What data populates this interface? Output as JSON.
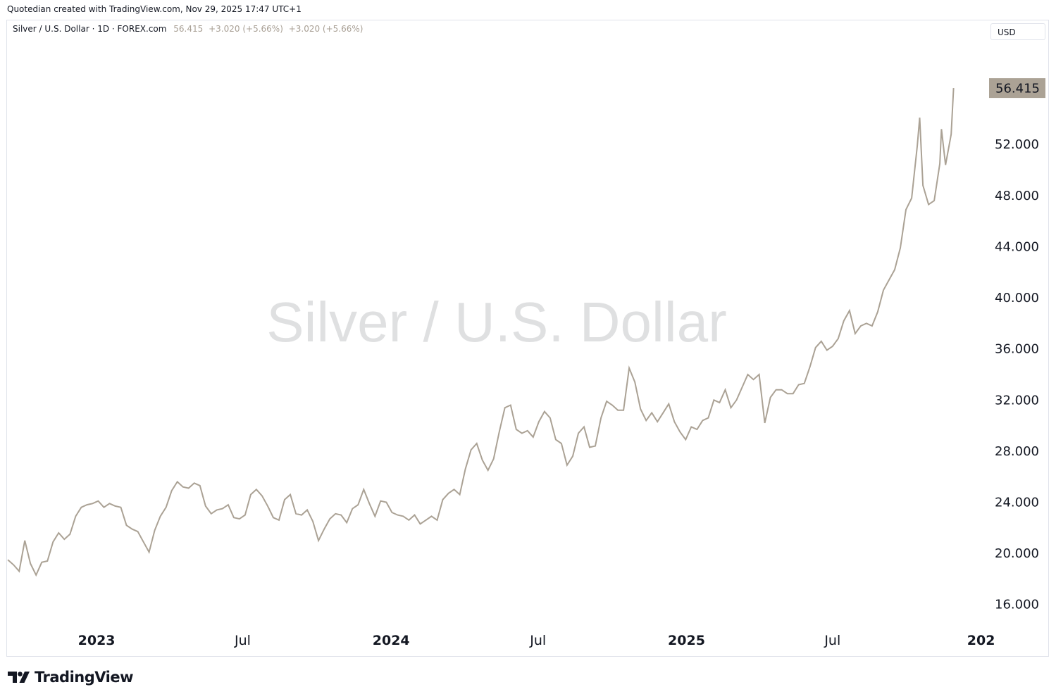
{
  "attribution": "Quotedian created with TradingView.com, Nov 29, 2025 17:47 UTC+1",
  "legend": {
    "symbol": "Silver / U.S. Dollar · 1D · FOREX.com",
    "last": "56.415",
    "change1": "+3.020 (+5.66%)",
    "change2": "+3.020 (+5.66%)"
  },
  "currency_label": "USD",
  "watermark": "Silver / U.S. Dollar",
  "brand": {
    "name": "TradingView"
  },
  "colors": {
    "line": "#aba295",
    "last_price_bg": "#aba295",
    "text": "#131722",
    "border": "#e0e3eb"
  },
  "chart_data": {
    "type": "line",
    "series": [
      {
        "name": "Silver / U.S. Dollar"
      }
    ],
    "y_axis": {
      "side": "right",
      "range": [
        14.0,
        60.0
      ],
      "ticks": [
        "16.000",
        "20.000",
        "24.000",
        "28.000",
        "32.000",
        "36.000",
        "40.000",
        "44.000",
        "48.000",
        "52.000"
      ]
    },
    "last_value_label": "56.415",
    "x_axis": {
      "range": [
        "2022-09-12",
        "2026-01-04"
      ],
      "ticks": [
        {
          "label": "2023",
          "date": "2023-01-01",
          "bold": true
        },
        {
          "label": "Jul",
          "date": "2023-07-01",
          "bold": false
        },
        {
          "label": "2024",
          "date": "2024-01-01",
          "bold": true
        },
        {
          "label": "Jul",
          "date": "2024-07-01",
          "bold": false
        },
        {
          "label": "2025",
          "date": "2025-01-01",
          "bold": true
        },
        {
          "label": "Jul",
          "date": "2025-07-01",
          "bold": false
        },
        {
          "label": "202",
          "date": "2026-01-01",
          "bold": true
        }
      ]
    },
    "points": [
      [
        "2022-09-13",
        19.5
      ],
      [
        "2022-09-20",
        19.1
      ],
      [
        "2022-09-27",
        18.6
      ],
      [
        "2022-10-04",
        21.0
      ],
      [
        "2022-10-11",
        19.2
      ],
      [
        "2022-10-18",
        18.3
      ],
      [
        "2022-10-25",
        19.3
      ],
      [
        "2022-11-01",
        19.4
      ],
      [
        "2022-11-08",
        20.9
      ],
      [
        "2022-11-15",
        21.6
      ],
      [
        "2022-11-22",
        21.1
      ],
      [
        "2022-11-29",
        21.5
      ],
      [
        "2022-12-06",
        22.9
      ],
      [
        "2022-12-13",
        23.6
      ],
      [
        "2022-12-20",
        23.8
      ],
      [
        "2022-12-27",
        23.9
      ],
      [
        "2023-01-03",
        24.1
      ],
      [
        "2023-01-10",
        23.6
      ],
      [
        "2023-01-17",
        23.9
      ],
      [
        "2023-01-24",
        23.7
      ],
      [
        "2023-01-31",
        23.6
      ],
      [
        "2023-02-07",
        22.2
      ],
      [
        "2023-02-14",
        21.9
      ],
      [
        "2023-02-21",
        21.7
      ],
      [
        "2023-02-28",
        20.9
      ],
      [
        "2023-03-07",
        20.1
      ],
      [
        "2023-03-14",
        21.8
      ],
      [
        "2023-03-21",
        22.9
      ],
      [
        "2023-03-28",
        23.6
      ],
      [
        "2023-04-04",
        24.9
      ],
      [
        "2023-04-11",
        25.6
      ],
      [
        "2023-04-18",
        25.2
      ],
      [
        "2023-04-25",
        25.1
      ],
      [
        "2023-05-02",
        25.5
      ],
      [
        "2023-05-09",
        25.3
      ],
      [
        "2023-05-16",
        23.7
      ],
      [
        "2023-05-23",
        23.1
      ],
      [
        "2023-05-30",
        23.4
      ],
      [
        "2023-06-06",
        23.5
      ],
      [
        "2023-06-13",
        23.8
      ],
      [
        "2023-06-20",
        22.8
      ],
      [
        "2023-06-27",
        22.7
      ],
      [
        "2023-07-04",
        23.0
      ],
      [
        "2023-07-11",
        24.6
      ],
      [
        "2023-07-18",
        25.0
      ],
      [
        "2023-07-25",
        24.5
      ],
      [
        "2023-08-01",
        23.7
      ],
      [
        "2023-08-08",
        22.8
      ],
      [
        "2023-08-15",
        22.6
      ],
      [
        "2023-08-22",
        24.2
      ],
      [
        "2023-08-29",
        24.6
      ],
      [
        "2023-09-05",
        23.1
      ],
      [
        "2023-09-12",
        23.0
      ],
      [
        "2023-09-19",
        23.4
      ],
      [
        "2023-09-26",
        22.5
      ],
      [
        "2023-10-03",
        21.0
      ],
      [
        "2023-10-10",
        21.9
      ],
      [
        "2023-10-17",
        22.7
      ],
      [
        "2023-10-24",
        23.1
      ],
      [
        "2023-10-31",
        23.0
      ],
      [
        "2023-11-07",
        22.4
      ],
      [
        "2023-11-14",
        23.5
      ],
      [
        "2023-11-21",
        23.8
      ],
      [
        "2023-11-28",
        25.0
      ],
      [
        "2023-12-05",
        23.9
      ],
      [
        "2023-12-12",
        22.9
      ],
      [
        "2023-12-19",
        24.1
      ],
      [
        "2023-12-26",
        24.0
      ],
      [
        "2024-01-02",
        23.2
      ],
      [
        "2024-01-09",
        23.0
      ],
      [
        "2024-01-16",
        22.9
      ],
      [
        "2024-01-23",
        22.6
      ],
      [
        "2024-01-30",
        23.0
      ],
      [
        "2024-02-06",
        22.3
      ],
      [
        "2024-02-13",
        22.6
      ],
      [
        "2024-02-20",
        22.9
      ],
      [
        "2024-02-27",
        22.6
      ],
      [
        "2024-03-05",
        24.2
      ],
      [
        "2024-03-12",
        24.7
      ],
      [
        "2024-03-19",
        25.0
      ],
      [
        "2024-03-26",
        24.6
      ],
      [
        "2024-04-02",
        26.6
      ],
      [
        "2024-04-09",
        28.1
      ],
      [
        "2024-04-16",
        28.6
      ],
      [
        "2024-04-23",
        27.3
      ],
      [
        "2024-04-30",
        26.5
      ],
      [
        "2024-05-07",
        27.4
      ],
      [
        "2024-05-14",
        29.5
      ],
      [
        "2024-05-21",
        31.4
      ],
      [
        "2024-05-28",
        31.6
      ],
      [
        "2024-06-04",
        29.7
      ],
      [
        "2024-06-11",
        29.4
      ],
      [
        "2024-06-18",
        29.6
      ],
      [
        "2024-06-25",
        29.1
      ],
      [
        "2024-07-02",
        30.3
      ],
      [
        "2024-07-09",
        31.1
      ],
      [
        "2024-07-16",
        30.6
      ],
      [
        "2024-07-23",
        28.9
      ],
      [
        "2024-07-30",
        28.6
      ],
      [
        "2024-08-06",
        26.9
      ],
      [
        "2024-08-13",
        27.6
      ],
      [
        "2024-08-20",
        29.4
      ],
      [
        "2024-08-27",
        29.9
      ],
      [
        "2024-09-03",
        28.3
      ],
      [
        "2024-09-10",
        28.4
      ],
      [
        "2024-09-17",
        30.6
      ],
      [
        "2024-09-24",
        31.9
      ],
      [
        "2024-10-01",
        31.6
      ],
      [
        "2024-10-08",
        31.2
      ],
      [
        "2024-10-15",
        31.2
      ],
      [
        "2024-10-22",
        34.5
      ],
      [
        "2024-10-29",
        33.4
      ],
      [
        "2024-11-05",
        31.3
      ],
      [
        "2024-11-12",
        30.4
      ],
      [
        "2024-11-19",
        31.0
      ],
      [
        "2024-11-26",
        30.3
      ],
      [
        "2024-12-03",
        31.0
      ],
      [
        "2024-12-10",
        31.7
      ],
      [
        "2024-12-17",
        30.3
      ],
      [
        "2024-12-24",
        29.5
      ],
      [
        "2024-12-31",
        28.9
      ],
      [
        "2025-01-07",
        29.9
      ],
      [
        "2025-01-14",
        29.7
      ],
      [
        "2025-01-21",
        30.4
      ],
      [
        "2025-01-28",
        30.6
      ],
      [
        "2025-02-04",
        32.0
      ],
      [
        "2025-02-11",
        31.8
      ],
      [
        "2025-02-18",
        32.8
      ],
      [
        "2025-02-25",
        31.4
      ],
      [
        "2025-03-04",
        32.0
      ],
      [
        "2025-03-11",
        33.0
      ],
      [
        "2025-03-18",
        34.0
      ],
      [
        "2025-03-25",
        33.6
      ],
      [
        "2025-04-01",
        34.0
      ],
      [
        "2025-04-08",
        30.2
      ],
      [
        "2025-04-15",
        32.2
      ],
      [
        "2025-04-22",
        32.8
      ],
      [
        "2025-04-29",
        32.8
      ],
      [
        "2025-05-06",
        32.5
      ],
      [
        "2025-05-13",
        32.5
      ],
      [
        "2025-05-20",
        33.2
      ],
      [
        "2025-05-27",
        33.3
      ],
      [
        "2025-06-03",
        34.6
      ],
      [
        "2025-06-10",
        36.1
      ],
      [
        "2025-06-17",
        36.6
      ],
      [
        "2025-06-24",
        35.9
      ],
      [
        "2025-07-01",
        36.2
      ],
      [
        "2025-07-08",
        36.8
      ],
      [
        "2025-07-15",
        38.2
      ],
      [
        "2025-07-22",
        39.0
      ],
      [
        "2025-07-29",
        37.2
      ],
      [
        "2025-08-05",
        37.8
      ],
      [
        "2025-08-12",
        38.0
      ],
      [
        "2025-08-19",
        37.8
      ],
      [
        "2025-08-26",
        38.9
      ],
      [
        "2025-09-02",
        40.6
      ],
      [
        "2025-09-09",
        41.4
      ],
      [
        "2025-09-16",
        42.2
      ],
      [
        "2025-09-23",
        43.9
      ],
      [
        "2025-09-30",
        46.9
      ],
      [
        "2025-10-07",
        47.8
      ],
      [
        "2025-10-14",
        51.9
      ],
      [
        "2025-10-17",
        54.1
      ],
      [
        "2025-10-21",
        48.8
      ],
      [
        "2025-10-28",
        47.3
      ],
      [
        "2025-11-04",
        47.6
      ],
      [
        "2025-11-11",
        50.5
      ],
      [
        "2025-11-13",
        53.2
      ],
      [
        "2025-11-18",
        50.4
      ],
      [
        "2025-11-25",
        52.8
      ],
      [
        "2025-11-28",
        56.415
      ]
    ]
  }
}
